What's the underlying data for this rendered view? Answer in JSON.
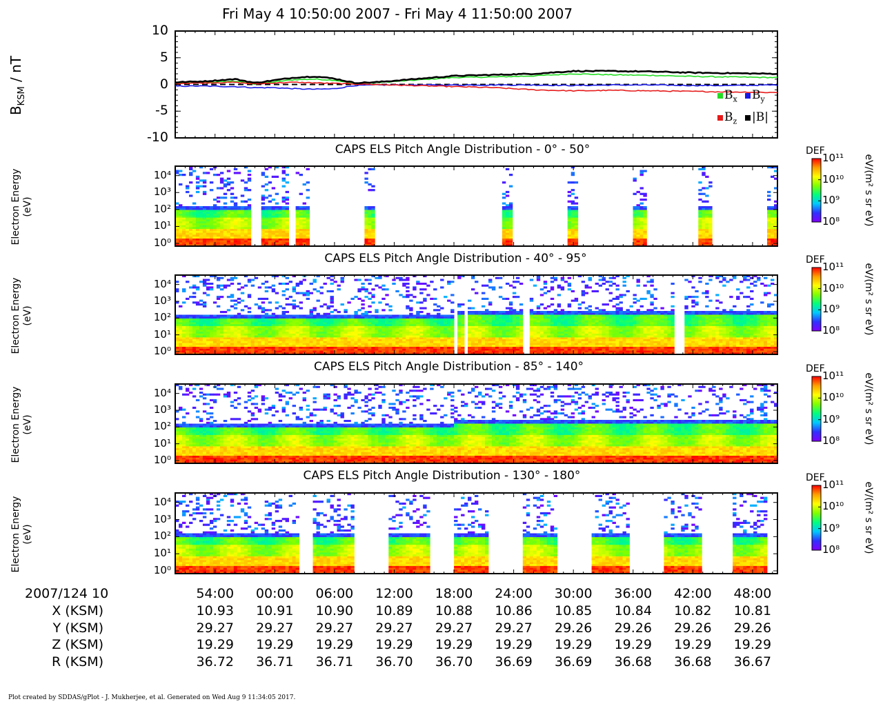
{
  "title": "Fri May  4 10:50:00 2007 - Fri May  4 11:50:00 2007",
  "footer": "Plot created by SDDAS/gPlot - J. Mukherjee, et al.  Generated on Wed Aug  9 11:34:05 2017.",
  "colors": {
    "Bx": "#22dd22",
    "By": "#1a1ae6",
    "Bz": "#e61a1a",
    "Bmag": "#000000",
    "colorbar": [
      "#8000ff",
      "#3030ff",
      "#00c8ff",
      "#00ff80",
      "#80ff00",
      "#ffff00",
      "#ffa000",
      "#ff0000"
    ]
  },
  "chart_data": [
    {
      "type": "line",
      "title": "",
      "ylabel": "B",
      "ylabel_sub": "KSM",
      "ylabel_unit": " / nT",
      "ylim": [
        -10,
        10
      ],
      "yticks": [
        "10",
        "5",
        "0",
        "-5",
        "-10"
      ],
      "x_unit": "minutes after 10:50",
      "x": [
        0,
        3,
        6,
        8,
        10,
        12,
        14,
        16,
        18,
        20,
        24,
        28,
        32,
        36,
        40,
        44,
        48,
        52,
        56,
        60
      ],
      "series": [
        {
          "name": "B",
          "sub": "x",
          "color": "Bx",
          "values": [
            0.2,
            0.4,
            0.6,
            0.1,
            0.5,
            0.9,
            1.0,
            0.8,
            0.2,
            0.3,
            0.8,
            1.3,
            1.4,
            1.6,
            2.0,
            1.8,
            1.7,
            1.5,
            1.4,
            1.3
          ]
        },
        {
          "name": "B",
          "sub": "y",
          "color": "By",
          "values": [
            -0.3,
            -0.3,
            -0.4,
            -0.6,
            -0.6,
            -0.8,
            -0.9,
            -0.8,
            -0.2,
            -0.1,
            -0.1,
            -0.1,
            -0.1,
            -0.1,
            -0.2,
            -0.1,
            -0.1,
            -0.2,
            -0.2,
            -0.1
          ]
        },
        {
          "name": "B",
          "sub": "z",
          "color": "Bz",
          "values": [
            0.2,
            0.3,
            0.4,
            0.1,
            0.3,
            0.4,
            0.3,
            0.2,
            0.1,
            0.0,
            -0.2,
            -0.4,
            -0.6,
            -1.0,
            -1.2,
            -1.1,
            -1.2,
            -1.3,
            -1.4,
            -1.5
          ]
        },
        {
          "name": "|B|",
          "sub": "",
          "color": "Bmag",
          "values": [
            0.4,
            0.6,
            1.0,
            0.3,
            0.8,
            1.3,
            1.5,
            1.1,
            0.3,
            0.4,
            1.0,
            1.6,
            1.8,
            2.0,
            2.5,
            2.5,
            2.4,
            2.2,
            2.1,
            2.0
          ]
        }
      ],
      "reference_line": 0,
      "legend_position": "bottom-right"
    },
    {
      "type": "heatmap",
      "title": "CAPS ELS Pitch Angle Distribution - 0° - 50°",
      "ylabel": "Electron Energy (eV)",
      "ylim_log10": [
        0,
        4.3
      ],
      "coverage_minutes": [
        [
          0,
          7.5
        ],
        [
          8.5,
          11.5
        ],
        [
          12,
          13.5
        ],
        [
          19,
          20
        ],
        [
          33,
          34
        ],
        [
          39.5,
          40.5
        ],
        [
          46,
          47.5
        ],
        [
          52.5,
          54
        ],
        [
          59.5,
          60.5
        ]
      ],
      "colorbar": {
        "label": "DEF",
        "unit": "eV/(m² s sr eV)",
        "min_log10": 8,
        "max_log10": 11
      }
    },
    {
      "type": "heatmap",
      "title": "CAPS ELS Pitch Angle Distribution - 40° - 95°",
      "ylabel": "Electron Energy (eV)",
      "ylim_log10": [
        0,
        4.3
      ],
      "coverage_minutes": [
        [
          0,
          28
        ],
        [
          28.5,
          29
        ],
        [
          29.5,
          35
        ],
        [
          35.5,
          50
        ],
        [
          51,
          60.5
        ]
      ],
      "colorbar": {
        "label": "DEF",
        "unit": "eV/(m² s sr eV)",
        "min_log10": 8,
        "max_log10": 11
      }
    },
    {
      "type": "heatmap",
      "title": "CAPS ELS Pitch Angle Distribution - 85° - 140°",
      "ylabel": "Electron Energy (eV)",
      "ylim_log10": [
        0,
        4.3
      ],
      "coverage_minutes": [
        [
          0,
          60.5
        ]
      ],
      "colorbar": {
        "label": "DEF",
        "unit": "eV/(m² s sr eV)",
        "min_log10": 8,
        "max_log10": 11
      }
    },
    {
      "type": "heatmap",
      "title": "CAPS ELS Pitch Angle Distribution - 130° - 180°",
      "ylabel": "Electron Energy (eV)",
      "ylim_log10": [
        0,
        4.3
      ],
      "coverage_minutes": [
        [
          0,
          12.5
        ],
        [
          14,
          18
        ],
        [
          21.5,
          25.5
        ],
        [
          28,
          31.5
        ],
        [
          35,
          38.5
        ],
        [
          42,
          45.5
        ],
        [
          49,
          53
        ],
        [
          56,
          59.5
        ]
      ],
      "colorbar": {
        "label": "DEF",
        "unit": "eV/(m² s sr eV)",
        "min_log10": 8,
        "max_log10": 11
      }
    }
  ],
  "heatmap_yticks": [
    "10⁰",
    "10¹",
    "10²",
    "10³",
    "10⁴"
  ],
  "colorbar_ticks": [
    "10⁸",
    "10⁹",
    "10¹⁰",
    "10¹¹"
  ],
  "time_axis": {
    "start_label": "2007/124 10",
    "tick_minutes": [
      4,
      10,
      16,
      22,
      28,
      34,
      40,
      46,
      52,
      58
    ],
    "tick_labels": [
      "54:00",
      "00:00",
      "06:00",
      "12:00",
      "18:00",
      "24:00",
      "30:00",
      "36:00",
      "42:00",
      "48:00"
    ]
  },
  "ephemeris": [
    {
      "label": "X (KSM)",
      "values": [
        "10.93",
        "10.91",
        "10.90",
        "10.89",
        "10.88",
        "10.86",
        "10.85",
        "10.84",
        "10.82",
        "10.81"
      ]
    },
    {
      "label": "Y (KSM)",
      "values": [
        "29.27",
        "29.27",
        "29.27",
        "29.27",
        "29.27",
        "29.27",
        "29.26",
        "29.26",
        "29.26",
        "29.26"
      ]
    },
    {
      "label": "Z (KSM)",
      "values": [
        "19.29",
        "19.29",
        "19.29",
        "19.29",
        "19.29",
        "19.29",
        "19.29",
        "19.29",
        "19.29",
        "19.29"
      ]
    },
    {
      "label": "R (KSM)",
      "values": [
        "36.72",
        "36.71",
        "36.71",
        "36.70",
        "36.70",
        "36.69",
        "36.69",
        "36.68",
        "36.68",
        "36.67"
      ]
    }
  ]
}
